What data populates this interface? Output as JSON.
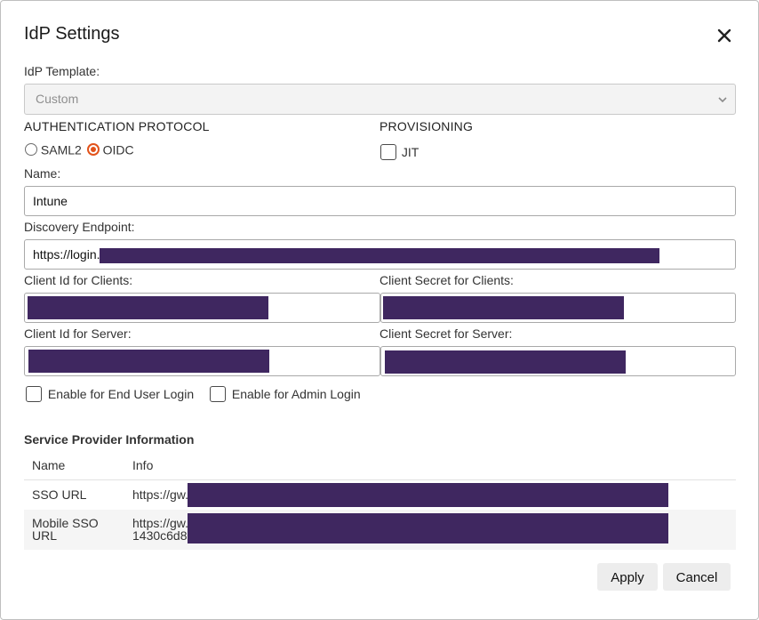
{
  "dialog": {
    "title": "IdP Settings"
  },
  "template": {
    "label": "IdP Template:",
    "value": "Custom"
  },
  "auth": {
    "heading": "AUTHENTICATION PROTOCOL",
    "options": [
      {
        "label": "SAML2",
        "selected": false
      },
      {
        "label": "OIDC",
        "selected": true
      }
    ]
  },
  "provisioning": {
    "heading": "PROVISIONING",
    "jit_label": "JIT",
    "jit_checked": false
  },
  "fields": {
    "name_label": "Name:",
    "name_value": "Intune",
    "discovery_label": "Discovery Endpoint:",
    "discovery_value": "https://login.",
    "client_id_clients_label": "Client Id for Clients:",
    "client_secret_clients_label": "Client Secret for Clients:",
    "client_id_server_label": "Client Id for Server:",
    "client_secret_server_label": "Client Secret for Server:"
  },
  "options": {
    "end_user_login": "Enable for End User Login",
    "admin_login": "Enable for Admin Login"
  },
  "sp": {
    "title": "Service Provider Information",
    "columns": [
      "Name",
      "Info"
    ],
    "rows": [
      {
        "name": "SSO URL",
        "info": "https://gw."
      },
      {
        "name": "Mobile SSO URL",
        "info_line1": "https://gw.",
        "info_line2": "1430c6d8"
      }
    ]
  },
  "buttons": {
    "apply": "Apply",
    "cancel": "Cancel"
  },
  "colors": {
    "accent": "#e2531b",
    "redaction": "#3f2760"
  }
}
